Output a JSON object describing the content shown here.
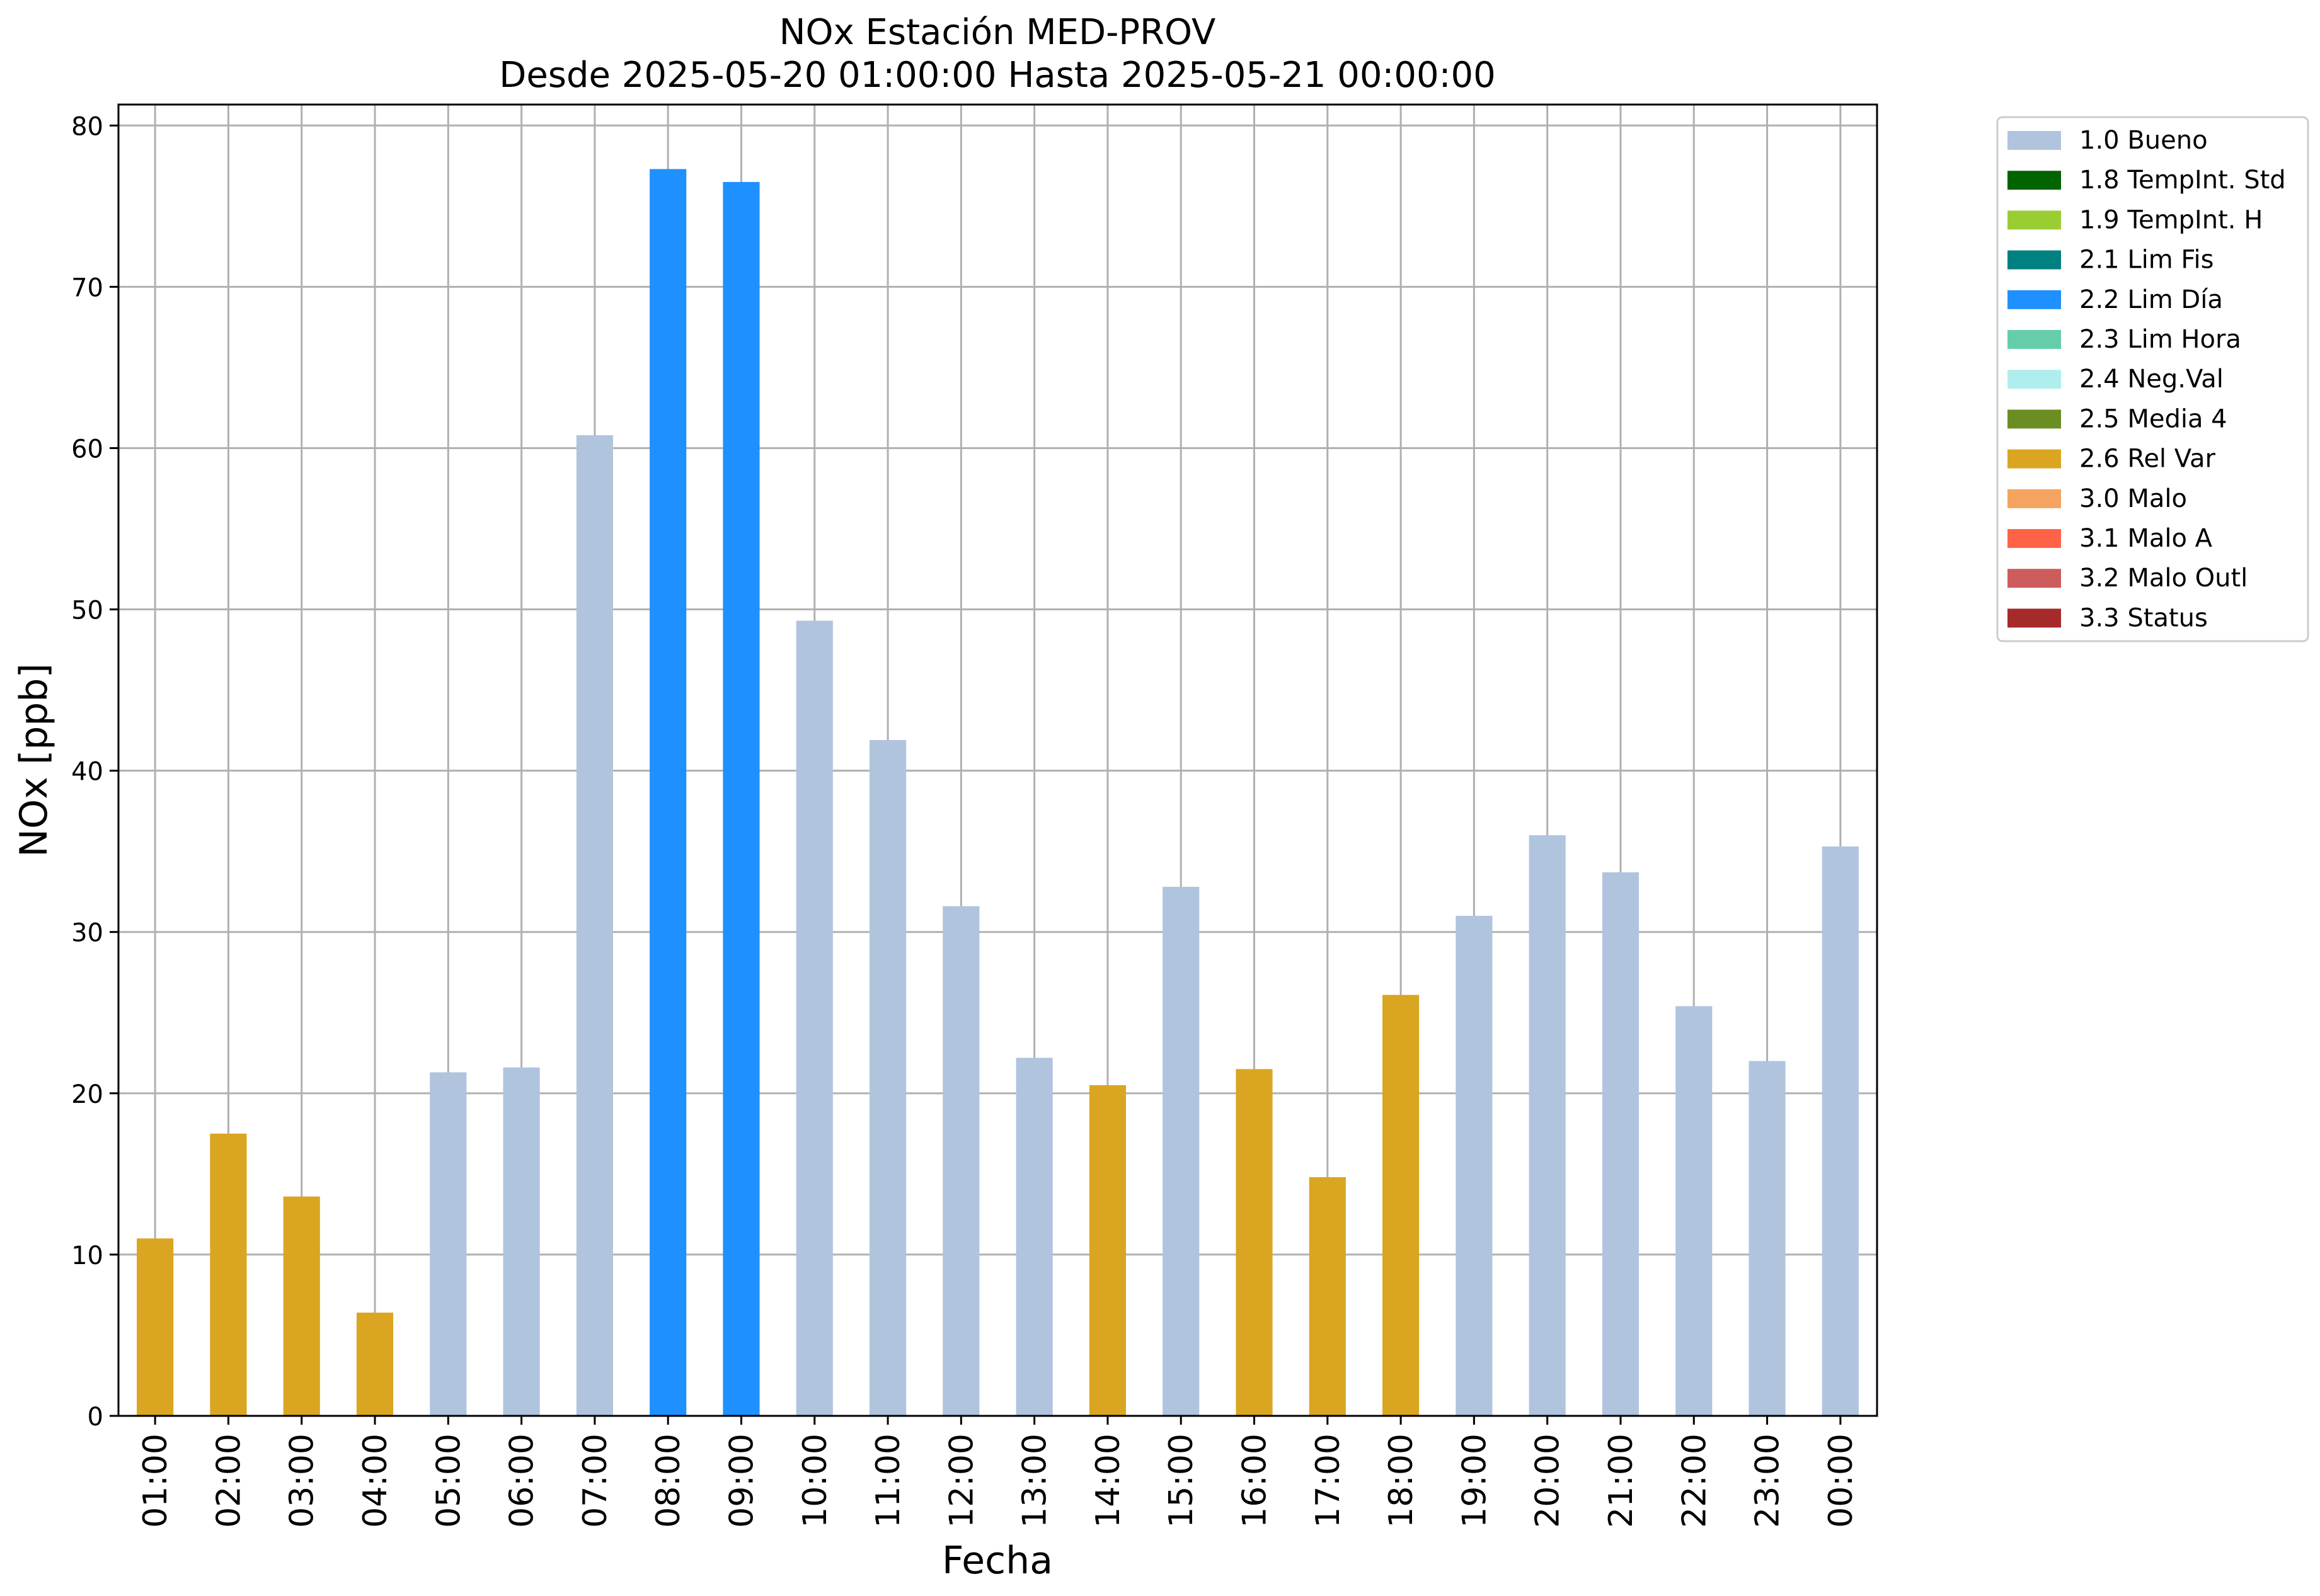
{
  "chart_data": {
    "type": "bar",
    "title_line1": "NOx Estación MED-PROV",
    "title_line2": "Desde 2025-05-20 01:00:00 Hasta 2025-05-21 00:00:00",
    "xlabel": "Fecha",
    "ylabel": "NOx [ppb]",
    "ylim": [
      0,
      81.3
    ],
    "yticks": [
      0,
      10,
      20,
      30,
      40,
      50,
      60,
      70,
      80
    ],
    "grid": true,
    "legend_position": "outside-top-right",
    "categories": [
      "01:00",
      "02:00",
      "03:00",
      "04:00",
      "05:00",
      "06:00",
      "07:00",
      "08:00",
      "09:00",
      "10:00",
      "11:00",
      "12:00",
      "13:00",
      "14:00",
      "15:00",
      "16:00",
      "17:00",
      "18:00",
      "19:00",
      "20:00",
      "21:00",
      "22:00",
      "23:00",
      "00:00"
    ],
    "values": [
      11.0,
      17.5,
      13.6,
      6.4,
      21.3,
      21.6,
      60.8,
      77.3,
      76.5,
      49.3,
      41.9,
      31.6,
      22.2,
      20.5,
      32.8,
      21.5,
      14.8,
      26.1,
      31.0,
      36.0,
      33.7,
      25.4,
      22.0,
      35.3
    ],
    "flags": [
      "2.6 Rel Var",
      "2.6 Rel Var",
      "2.6 Rel Var",
      "2.6 Rel Var",
      "1.0 Bueno",
      "1.0 Bueno",
      "1.0 Bueno",
      "2.2 Lim Día",
      "2.2 Lim Día",
      "1.0 Bueno",
      "1.0 Bueno",
      "1.0 Bueno",
      "1.0 Bueno",
      "2.6 Rel Var",
      "1.0 Bueno",
      "2.6 Rel Var",
      "2.6 Rel Var",
      "2.6 Rel Var",
      "1.0 Bueno",
      "1.0 Bueno",
      "1.0 Bueno",
      "1.0 Bueno",
      "1.0 Bueno",
      "1.0 Bueno"
    ],
    "legend": [
      {
        "label": "1.0 Bueno",
        "color": "#b0c4de"
      },
      {
        "label": "1.8 TempInt. Std",
        "color": "#006400"
      },
      {
        "label": "1.9 TempInt. H",
        "color": "#9acd32"
      },
      {
        "label": "2.1 Lim Fis",
        "color": "#008080"
      },
      {
        "label": "2.2 Lim Día",
        "color": "#1e90ff"
      },
      {
        "label": "2.3 Lim Hora",
        "color": "#66cdaa"
      },
      {
        "label": "2.4 Neg.Val",
        "color": "#afeeee"
      },
      {
        "label": "2.5 Media 4",
        "color": "#6b8e23"
      },
      {
        "label": "2.6 Rel Var",
        "color": "#daa520"
      },
      {
        "label": "3.0 Malo",
        "color": "#f4a460"
      },
      {
        "label": "3.1 Malo A",
        "color": "#ff6347"
      },
      {
        "label": "3.2 Malo Outl",
        "color": "#cd5c5c"
      },
      {
        "label": "3.3 Status",
        "color": "#a52a2a"
      }
    ]
  }
}
